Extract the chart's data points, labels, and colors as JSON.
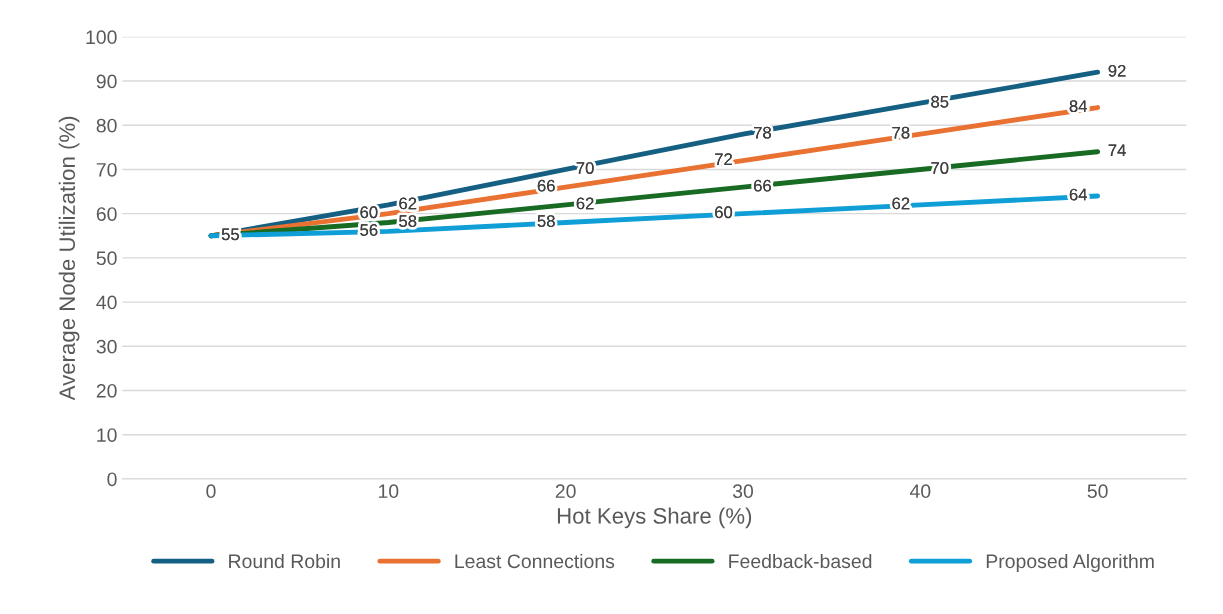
{
  "chart_data": {
    "type": "line",
    "xlabel": "Hot Keys Share (%)",
    "ylabel": "Average Node Utilization (%)",
    "categories": [
      "0",
      "10",
      "20",
      "30",
      "40",
      "50"
    ],
    "series": [
      {
        "name": "Round Robin",
        "color": "#156082",
        "values": [
          55,
          62,
          70,
          78,
          85,
          92
        ],
        "value_labels": [
          "55",
          "62",
          "70",
          "78",
          "85",
          "92"
        ]
      },
      {
        "name": "Least Connections",
        "color": "#e97132",
        "values": [
          55,
          60,
          66,
          72,
          78,
          84
        ],
        "value_labels": [
          null,
          "60",
          "66",
          "72",
          "78",
          "84"
        ]
      },
      {
        "name": "Feedback-based",
        "color": "#196b24",
        "values": [
          55,
          58,
          62,
          66,
          70,
          74
        ],
        "value_labels": [
          null,
          "58",
          "62",
          "66",
          "70",
          "74"
        ]
      },
      {
        "name": "Proposed Algorithm",
        "color": "#0f9ed5",
        "values": [
          55,
          56,
          58,
          60,
          62,
          64
        ],
        "value_labels": [
          null,
          "56",
          "58",
          "60",
          "62",
          "64"
        ]
      }
    ],
    "ylim": [
      0,
      100
    ],
    "yticks": [
      0,
      10,
      20,
      30,
      40,
      50,
      60,
      70,
      80,
      90,
      100
    ],
    "grid": "y",
    "legend": "bottom",
    "marker": "none",
    "line_style": "solid"
  }
}
